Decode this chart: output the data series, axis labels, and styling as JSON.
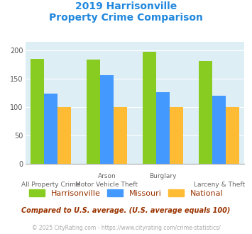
{
  "title_line1": "2019 Harrisonville",
  "title_line2": "Property Crime Comparison",
  "harrisonville": [
    185,
    184,
    198,
    182
  ],
  "missouri": [
    124,
    156,
    126,
    120
  ],
  "national": [
    100,
    100,
    100,
    100
  ],
  "bar_color_harrisonville": "#88cc22",
  "bar_color_missouri": "#4499ff",
  "bar_color_national": "#ffbb33",
  "background_color": "#ddeef5",
  "ylim": [
    0,
    215
  ],
  "yticks": [
    0,
    50,
    100,
    150,
    200
  ],
  "top_labels": [
    "",
    "Arson",
    "Burglary",
    ""
  ],
  "bottom_labels": [
    "All Property Crime",
    "Motor Vehicle Theft",
    "",
    "Larceny & Theft"
  ],
  "legend_labels": [
    "Harrisonville",
    "Missouri",
    "National"
  ],
  "footnote1": "Compared to U.S. average. (U.S. average equals 100)",
  "footnote2": "© 2025 CityRating.com - https://www.cityrating.com/crime-statistics/",
  "title_color": "#2288dd",
  "footnote1_color": "#993300",
  "footnote2_color": "#aaaaaa",
  "legend_text_color": "#993300"
}
